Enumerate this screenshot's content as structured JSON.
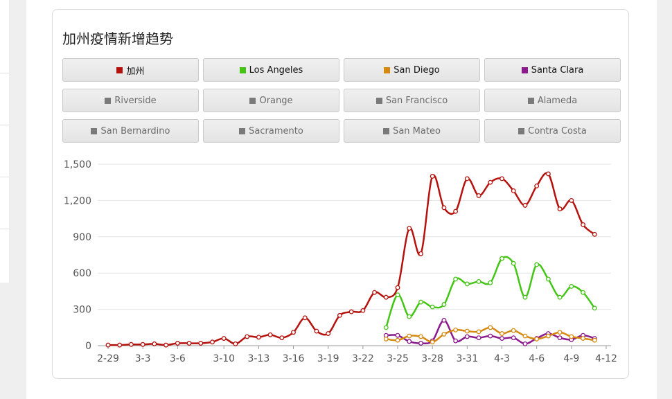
{
  "title": "加州疫情新增趋势",
  "legend": [
    {
      "label": "加州",
      "color": "#b5120e",
      "active": true
    },
    {
      "label": "Los Angeles",
      "color": "#44c516",
      "active": true
    },
    {
      "label": "San Diego",
      "color": "#d68910",
      "active": true
    },
    {
      "label": "Santa Clara",
      "color": "#8b1a8d",
      "active": true
    },
    {
      "label": "Riverside",
      "color": "#7a7a7a",
      "active": false
    },
    {
      "label": "Orange",
      "color": "#7a7a7a",
      "active": false
    },
    {
      "label": "San Francisco",
      "color": "#7a7a7a",
      "active": false
    },
    {
      "label": "Alameda",
      "color": "#7a7a7a",
      "active": false
    },
    {
      "label": "San Bernardino",
      "color": "#7a7a7a",
      "active": false
    },
    {
      "label": "Sacramento",
      "color": "#7a7a7a",
      "active": false
    },
    {
      "label": "San Mateo",
      "color": "#7a7a7a",
      "active": false
    },
    {
      "label": "Contra Costa",
      "color": "#7a7a7a",
      "active": false
    }
  ],
  "chart_data": {
    "type": "line",
    "x": [
      "2-29",
      "3-1",
      "3-2",
      "3-3",
      "3-4",
      "3-5",
      "3-6",
      "3-7",
      "3-8",
      "3-9",
      "3-10",
      "3-11",
      "3-12",
      "3-13",
      "3-14",
      "3-15",
      "3-16",
      "3-17",
      "3-18",
      "3-19",
      "3-20",
      "3-21",
      "3-22",
      "3-23",
      "3-24",
      "3-25",
      "3-26",
      "3-27",
      "3-28",
      "3-29",
      "3-30",
      "3-31",
      "4-1",
      "4-2",
      "4-3",
      "4-4",
      "4-5",
      "4-6",
      "4-7",
      "4-8",
      "4-9",
      "4-10",
      "4-11",
      "4-12"
    ],
    "x_tick_labels": [
      "2-29",
      "3-3",
      "3-6",
      "3-10",
      "3-13",
      "3-16",
      "3-19",
      "3-22",
      "3-25",
      "3-28",
      "3-31",
      "4-3",
      "4-6",
      "4-9",
      "4-12"
    ],
    "y_ticks": [
      0,
      300,
      600,
      900,
      1200,
      1500
    ],
    "y_tick_labels": [
      "0",
      "300",
      "600",
      "900",
      "1,200",
      "1,500"
    ],
    "ylim": [
      0,
      1500
    ],
    "grid": true,
    "series": [
      {
        "name": "加州",
        "color": "#b5120e",
        "values": [
          5,
          5,
          10,
          10,
          15,
          5,
          20,
          20,
          20,
          30,
          60,
          15,
          75,
          70,
          90,
          65,
          110,
          230,
          120,
          100,
          250,
          280,
          290,
          440,
          400,
          480,
          970,
          760,
          1400,
          1140,
          1110,
          1380,
          1240,
          1350,
          1380,
          1280,
          1160,
          1320,
          1420,
          1130,
          1200,
          1000,
          920,
          null
        ]
      },
      {
        "name": "Los Angeles",
        "color": "#44c516",
        "values": [
          null,
          null,
          null,
          null,
          null,
          null,
          null,
          null,
          null,
          null,
          null,
          null,
          null,
          null,
          null,
          null,
          null,
          null,
          null,
          null,
          null,
          null,
          null,
          null,
          150,
          420,
          240,
          360,
          320,
          340,
          550,
          510,
          530,
          520,
          720,
          680,
          400,
          670,
          550,
          400,
          490,
          440,
          310,
          null
        ]
      },
      {
        "name": "San Diego",
        "color": "#d68910",
        "values": [
          null,
          null,
          null,
          null,
          null,
          null,
          null,
          null,
          null,
          null,
          null,
          null,
          null,
          null,
          null,
          null,
          null,
          null,
          null,
          null,
          null,
          null,
          null,
          null,
          55,
          45,
          80,
          75,
          30,
          95,
          130,
          120,
          115,
          150,
          100,
          125,
          80,
          55,
          80,
          110,
          75,
          60,
          45,
          null
        ]
      },
      {
        "name": "Santa Clara",
        "color": "#8b1a8d",
        "values": [
          null,
          null,
          null,
          null,
          null,
          null,
          null,
          null,
          null,
          null,
          null,
          null,
          null,
          null,
          null,
          null,
          null,
          null,
          null,
          null,
          null,
          null,
          null,
          null,
          85,
          85,
          35,
          20,
          40,
          210,
          40,
          75,
          65,
          80,
          60,
          65,
          15,
          60,
          100,
          65,
          50,
          85,
          60,
          null
        ]
      }
    ]
  }
}
